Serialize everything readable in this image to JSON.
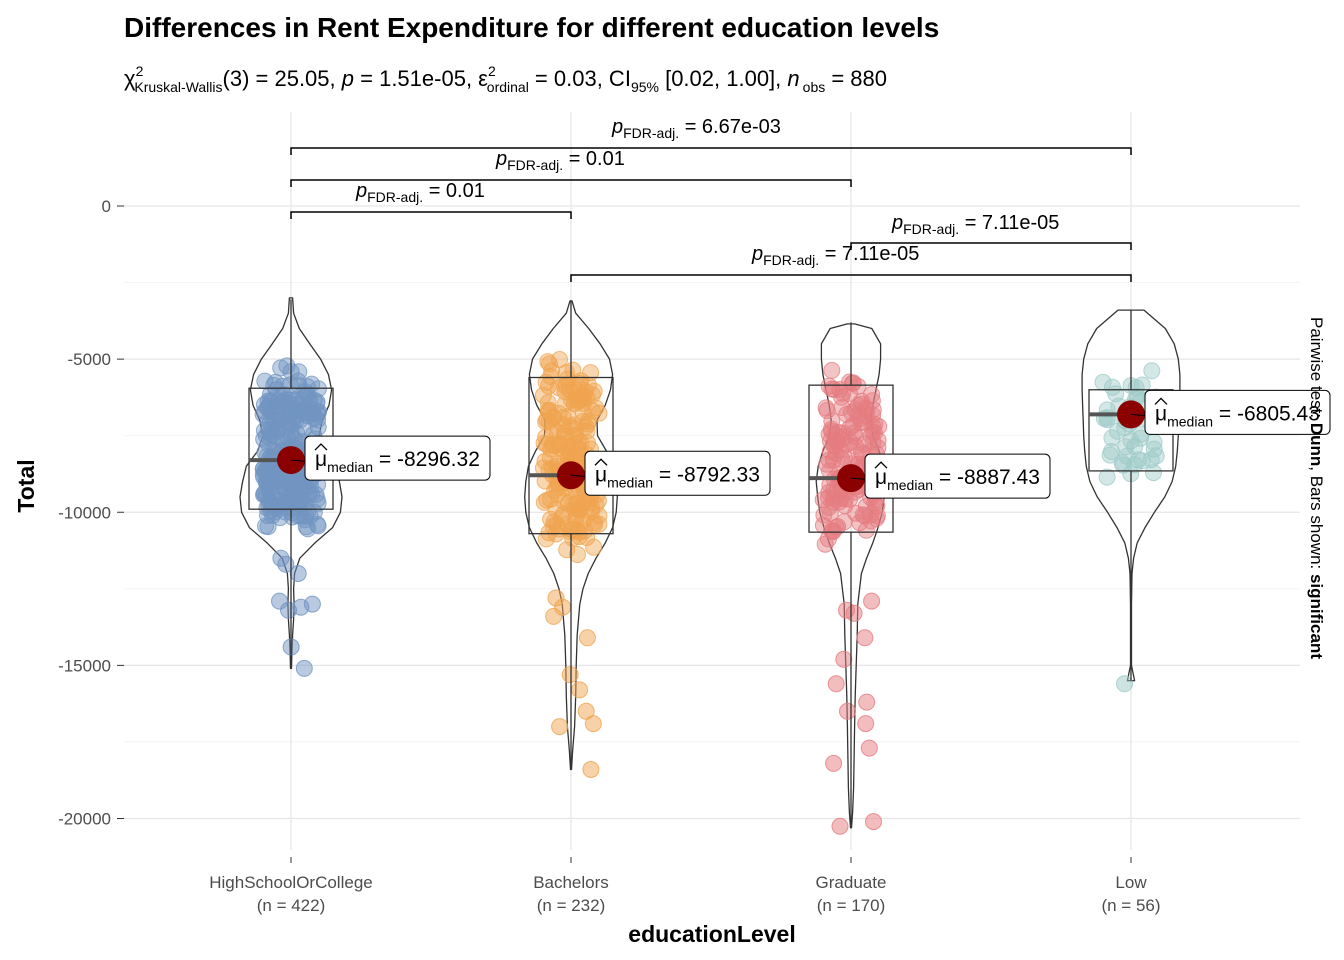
{
  "chart_data": {
    "type": "violin-box-scatter",
    "title": "Differences in Rent Expenditure for different education levels",
    "subtitle": {
      "chi_sym": "χ",
      "chi_sup": "2",
      "chi_sub": "Kruskal-Wallis",
      "df": "(3)",
      "stat": "25.05",
      "p_label": "p",
      "p_value": "1.51e-05",
      "eps_sym": "ε",
      "eps_sup": "2",
      "eps_sub": "ordinal",
      "eps_value": "0.03",
      "ci_label": "CI",
      "ci_sub": "95%",
      "ci_value": "[0.02, 1.00]",
      "n_label": "n",
      "n_sub": "obs",
      "n_value": "880"
    },
    "xlabel": "educationLevel",
    "ylabel": "Total",
    "ylim": [
      -20800,
      3000
    ],
    "yticks": [
      0,
      -5000,
      -10000,
      -15000,
      -20000
    ],
    "ytick_labels": [
      "0",
      "-5000",
      "-10000",
      "-15000",
      "-20000"
    ],
    "grid": true,
    "caption": {
      "prefix": "Pairwise test: ",
      "test": "Dunn",
      "middle": ", Bars shown: ",
      "shown": "significant"
    },
    "median_label": {
      "sym": "μ",
      "sub": "median"
    },
    "groups": [
      {
        "name": "HighSchoolOrCollege",
        "n_label": "(n = 422)",
        "color": "#7294C2",
        "median": -8296.32,
        "median_label": "-8296.32",
        "q1": -9900,
        "q3": -5950,
        "whisker_low": -15050,
        "whisker_high": -3050,
        "violin": [
          [
            -3000,
            0.03
          ],
          [
            -3500,
            0.05
          ],
          [
            -4000,
            0.16
          ],
          [
            -4500,
            0.36
          ],
          [
            -5000,
            0.57
          ],
          [
            -5500,
            0.72
          ],
          [
            -6000,
            0.78
          ],
          [
            -6500,
            0.73
          ],
          [
            -7000,
            0.6
          ],
          [
            -7500,
            0.54
          ],
          [
            -8000,
            0.64
          ],
          [
            -8500,
            0.86
          ],
          [
            -9000,
            0.93
          ],
          [
            -9500,
            0.98
          ],
          [
            -10000,
            0.95
          ],
          [
            -10500,
            0.8
          ],
          [
            -11000,
            0.46
          ],
          [
            -11500,
            0.17
          ],
          [
            -12000,
            0.07
          ],
          [
            -12500,
            0.05
          ],
          [
            -13000,
            0.06
          ],
          [
            -13500,
            0.05
          ],
          [
            -14000,
            0.03
          ],
          [
            -14500,
            0.02
          ],
          [
            -15100,
            0.01
          ]
        ],
        "outliers": [
          -11500,
          -11700,
          -12000,
          -12900,
          -13000,
          -13100,
          -13200,
          -14400,
          -15100
        ]
      },
      {
        "name": "Bachelors",
        "n_label": "(n = 232)",
        "color": "#F0A44F",
        "median": -8792.33,
        "median_label": "-8792.33",
        "q1": -10700,
        "q3": -5600,
        "whisker_low": -18350,
        "whisker_high": -3100,
        "violin": [
          [
            -3100,
            0.02
          ],
          [
            -3500,
            0.09
          ],
          [
            -4000,
            0.34
          ],
          [
            -4500,
            0.56
          ],
          [
            -5000,
            0.74
          ],
          [
            -5500,
            0.8
          ],
          [
            -6000,
            0.76
          ],
          [
            -6500,
            0.66
          ],
          [
            -7000,
            0.5
          ],
          [
            -7500,
            0.51
          ],
          [
            -8000,
            0.68
          ],
          [
            -8500,
            0.82
          ],
          [
            -9000,
            0.87
          ],
          [
            -9500,
            0.89
          ],
          [
            -10000,
            0.87
          ],
          [
            -10500,
            0.8
          ],
          [
            -11000,
            0.66
          ],
          [
            -11500,
            0.48
          ],
          [
            -12000,
            0.33
          ],
          [
            -12500,
            0.23
          ],
          [
            -13000,
            0.17
          ],
          [
            -14000,
            0.12
          ],
          [
            -15000,
            0.1
          ],
          [
            -16000,
            0.09
          ],
          [
            -17000,
            0.07
          ],
          [
            -17800,
            0.03
          ],
          [
            -18400,
            0.01
          ]
        ],
        "outliers": [
          -12800,
          -13100,
          -13400,
          -14100,
          -15300,
          -15800,
          -16500,
          -16900,
          -17000,
          -18400
        ]
      },
      {
        "name": "Graduate",
        "n_label": "(n = 170)",
        "color": "#E57C80",
        "median": -8887.43,
        "median_label": "-8887.43",
        "q1": -10650,
        "q3": -5850,
        "whisker_low": -20200,
        "whisker_high": -3800,
        "violin": [
          [
            -3850,
            0.07
          ],
          [
            -4000,
            0.4
          ],
          [
            -4500,
            0.57
          ],
          [
            -5000,
            0.57
          ],
          [
            -5500,
            0.54
          ],
          [
            -6000,
            0.48
          ],
          [
            -6500,
            0.42
          ],
          [
            -7000,
            0.38
          ],
          [
            -7500,
            0.42
          ],
          [
            -8000,
            0.54
          ],
          [
            -8500,
            0.63
          ],
          [
            -9000,
            0.67
          ],
          [
            -9500,
            0.64
          ],
          [
            -10000,
            0.6
          ],
          [
            -10500,
            0.52
          ],
          [
            -11000,
            0.42
          ],
          [
            -11500,
            0.3
          ],
          [
            -12000,
            0.2
          ],
          [
            -13000,
            0.13
          ],
          [
            -14000,
            0.12
          ],
          [
            -15000,
            0.1
          ],
          [
            -16000,
            0.08
          ],
          [
            -17000,
            0.07
          ],
          [
            -18000,
            0.06
          ],
          [
            -19000,
            0.05
          ],
          [
            -19800,
            0.03
          ],
          [
            -20300,
            0.01
          ]
        ],
        "outliers": [
          -12900,
          -13200,
          -13300,
          -14100,
          -14800,
          -15600,
          -16200,
          -16500,
          -16900,
          -17700,
          -18200,
          -20100,
          -20250
        ]
      },
      {
        "name": "Low",
        "n_label": "(n = 56)",
        "color": "#9ECAC8",
        "median": -6805.43,
        "median_label": "-6805.43",
        "q1": -8650,
        "q3": -6000,
        "whisker_low": -15500,
        "whisker_high": -3400,
        "violin": [
          [
            -3400,
            0.25
          ],
          [
            -4000,
            0.66
          ],
          [
            -4500,
            0.83
          ],
          [
            -5000,
            0.91
          ],
          [
            -5500,
            0.94
          ],
          [
            -6000,
            0.94
          ],
          [
            -6500,
            0.93
          ],
          [
            -7000,
            0.92
          ],
          [
            -7500,
            0.91
          ],
          [
            -8000,
            0.89
          ],
          [
            -8500,
            0.86
          ],
          [
            -9000,
            0.79
          ],
          [
            -9500,
            0.65
          ],
          [
            -10000,
            0.45
          ],
          [
            -10500,
            0.27
          ],
          [
            -11000,
            0.12
          ],
          [
            -11500,
            0.05
          ],
          [
            -12000,
            0.02
          ],
          [
            -13000,
            0.01
          ],
          [
            -14000,
            0.01
          ],
          [
            -15000,
            0.01
          ],
          [
            -15500,
            0.07
          ]
        ],
        "outliers": [
          -15600
        ]
      }
    ],
    "comparisons": [
      {
        "from": 0,
        "to": 3,
        "p_label": "p",
        "p_sub": "FDR-adj.",
        "value": "6.67e-03"
      },
      {
        "from": 0,
        "to": 2,
        "p_label": "p",
        "p_sub": "FDR-adj.",
        "value": "0.01"
      },
      {
        "from": 0,
        "to": 1,
        "p_label": "p",
        "p_sub": "FDR-adj.",
        "value": "0.01"
      },
      {
        "from": 2,
        "to": 3,
        "p_label": "p",
        "p_sub": "FDR-adj.",
        "value": "7.11e-05"
      },
      {
        "from": 1,
        "to": 3,
        "p_label": "p",
        "p_sub": "FDR-adj.",
        "value": "7.11e-05"
      }
    ]
  }
}
